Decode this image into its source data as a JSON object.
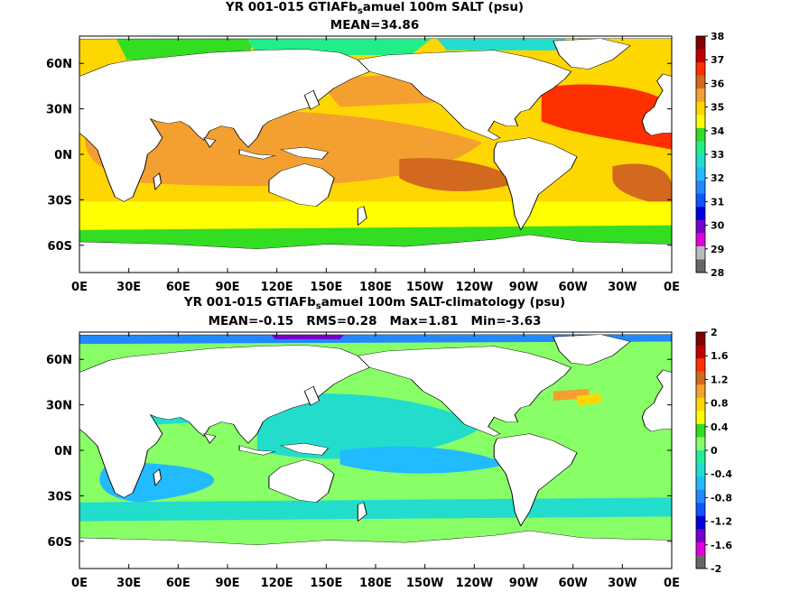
{
  "panels": [
    {
      "title_prefix": "YR 001-015 GTIAFb",
      "title_sub": "s",
      "title_suffix": "amuel 100m SALT (psu)",
      "stats": "MEAN=34.86",
      "colorbar": {
        "labels": [
          "38",
          "37",
          "36",
          "35",
          "34",
          "33",
          "32",
          "31",
          "30",
          "29",
          "28"
        ],
        "colors": [
          "#7f0000",
          "#c00000",
          "#ff3000",
          "#d2691e",
          "#f4a030",
          "#ffd700",
          "#ffff00",
          "#33dd22",
          "#22ee88",
          "#22ddcc",
          "#22bbff",
          "#2288ff",
          "#1155ff",
          "#0000dd",
          "#7700cc",
          "#dd00dd",
          "#bbbbbb",
          "#666666"
        ]
      }
    },
    {
      "title_prefix": "YR 001-015 GTIAFb",
      "title_sub": "s",
      "title_suffix": "amuel 100m SALT-climatology (psu)",
      "stats": "MEAN=-0.15   RMS=0.28   Max=1.81   Min=-3.63",
      "colorbar": {
        "labels": [
          "2",
          "1.6",
          "1.2",
          "0.8",
          "0.4",
          "0",
          "-0.4",
          "-0.8",
          "-1.2",
          "-1.6",
          "-2"
        ],
        "colors": [
          "#7f0000",
          "#c00000",
          "#ff3000",
          "#d2691e",
          "#f4a030",
          "#ffd700",
          "#ffff00",
          "#33dd22",
          "#88ff66",
          "#22ee99",
          "#22ddcc",
          "#22bbff",
          "#2288ff",
          "#1155ff",
          "#0000dd",
          "#7700cc",
          "#dd00dd",
          "#666666"
        ]
      }
    }
  ],
  "axes": {
    "x_ticks": [
      "0E",
      "30E",
      "60E",
      "90E",
      "120E",
      "150E",
      "180E",
      "150W",
      "120W",
      "90W",
      "60W",
      "30W",
      "0E"
    ],
    "y_ticks": [
      "60N",
      "30N",
      "0N",
      "30S",
      "60S"
    ]
  }
}
